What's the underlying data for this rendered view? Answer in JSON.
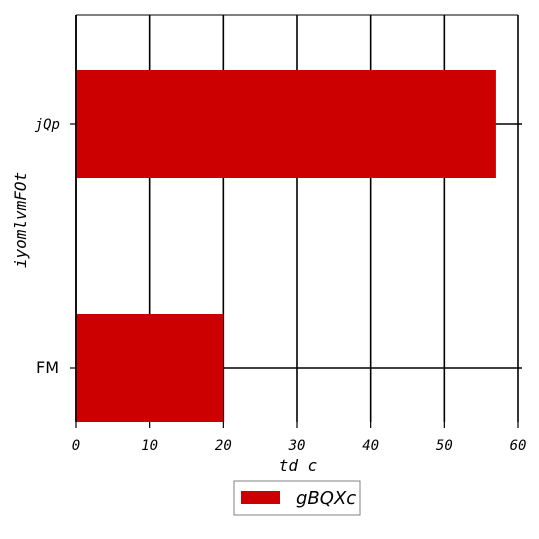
{
  "chart_data": {
    "type": "bar",
    "orientation": "horizontal",
    "categories": [
      "jQp",
      "FM"
    ],
    "series": [
      {
        "name": "gBQXc",
        "values": [
          57,
          20
        ],
        "color": "#cc0000"
      }
    ],
    "xlabel": "td c",
    "ylabel": "iyomlvmFOt",
    "xlim": [
      0,
      60
    ],
    "xticks": [
      "0",
      "10",
      "20",
      "30",
      "40",
      "50",
      "60"
    ],
    "grid": true,
    "legend_position": "bottom-center",
    "title": ""
  }
}
